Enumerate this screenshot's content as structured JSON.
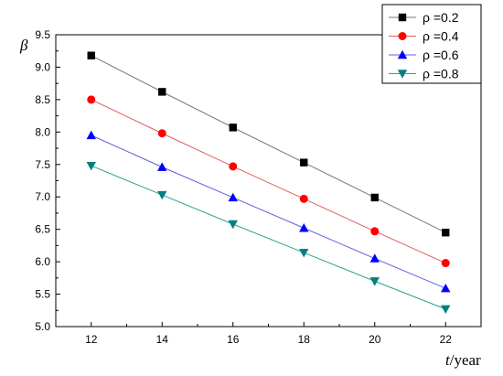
{
  "chart_data": {
    "type": "line",
    "title": "",
    "xlabel_italic": "t",
    "xlabel_rest": "/year",
    "ylabel": "β",
    "xlim": [
      11,
      23
    ],
    "ylim": [
      5.0,
      9.5
    ],
    "x": [
      12,
      14,
      16,
      18,
      20,
      22
    ],
    "x_ticks": [
      12,
      14,
      16,
      18,
      20,
      22
    ],
    "y_ticks": [
      "5.0",
      "5.5",
      "6.0",
      "6.5",
      "7.0",
      "7.5",
      "8.0",
      "8.5",
      "9.0",
      "9.5"
    ],
    "grid": false,
    "legend": {
      "placement": "top-right",
      "entries": [
        "ρ =0.2",
        "ρ =0.4",
        "ρ =0.6",
        "ρ =0.8"
      ]
    },
    "series": [
      {
        "name": "ρ =0.2",
        "marker": "square",
        "line_color": "#777777",
        "marker_color": "#000000",
        "values": [
          9.18,
          8.62,
          8.07,
          7.53,
          6.99,
          6.45
        ]
      },
      {
        "name": "ρ =0.4",
        "marker": "circle",
        "line_color": "#e06060",
        "marker_color": "#ff0000",
        "values": [
          8.5,
          7.98,
          7.47,
          6.97,
          6.47,
          5.98
        ]
      },
      {
        "name": "ρ =0.6",
        "marker": "triangle-up",
        "line_color": "#6060e0",
        "marker_color": "#0000ff",
        "values": [
          7.95,
          7.46,
          6.99,
          6.52,
          6.05,
          5.59
        ]
      },
      {
        "name": "ρ =0.8",
        "marker": "triangle-down",
        "line_color": "#30a090",
        "marker_color": "#008080",
        "values": [
          7.48,
          7.03,
          6.58,
          6.14,
          5.7,
          5.27
        ]
      }
    ]
  }
}
